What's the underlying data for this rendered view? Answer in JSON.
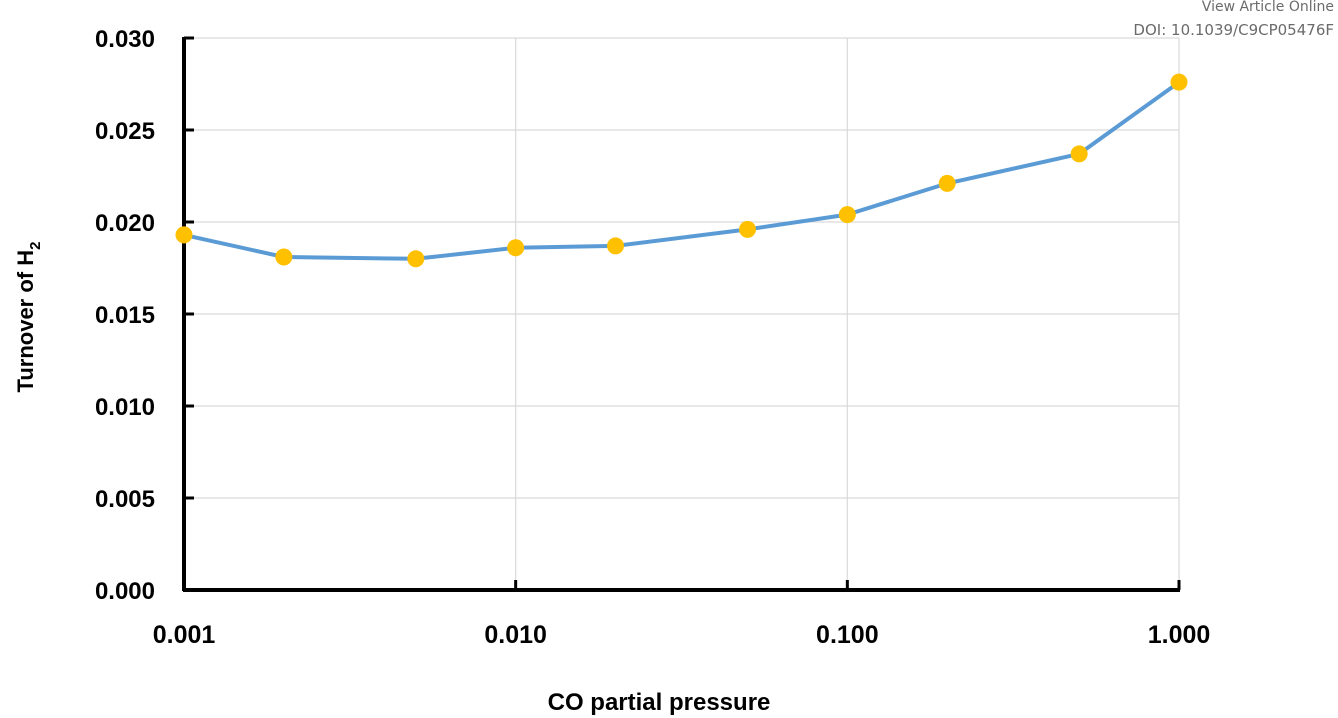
{
  "header": {
    "link_label": "View Article Online",
    "doi": "DOI: 10.1039/C9CP05476F"
  },
  "chart_data": {
    "type": "line",
    "x_scale": "log",
    "xlabel": "CO partial pressure",
    "ylabel_main": "Turnover of H",
    "ylabel_sub": "2",
    "xlim": [
      0.001,
      1.0
    ],
    "ylim": [
      0.0,
      0.03
    ],
    "x_ticks": [
      "0.001",
      "0.010",
      "0.100",
      "1.000"
    ],
    "x_tick_values": [
      0.001,
      0.01,
      0.1,
      1.0
    ],
    "y_ticks": [
      "0.000",
      "0.005",
      "0.010",
      "0.015",
      "0.020",
      "0.025",
      "0.030"
    ],
    "y_tick_values": [
      0.0,
      0.005,
      0.01,
      0.015,
      0.02,
      0.025,
      0.03
    ],
    "grid": true,
    "series": [
      {
        "x": [
          0.001,
          0.002,
          0.005,
          0.01,
          0.02,
          0.05,
          0.1,
          0.2,
          0.5,
          1.0
        ],
        "y": [
          0.0193,
          0.0181,
          0.018,
          0.0186,
          0.0187,
          0.0196,
          0.0204,
          0.0221,
          0.0237,
          0.0276
        ],
        "line_color": "#5b9bd5",
        "marker_color": "#ffc000"
      }
    ]
  }
}
